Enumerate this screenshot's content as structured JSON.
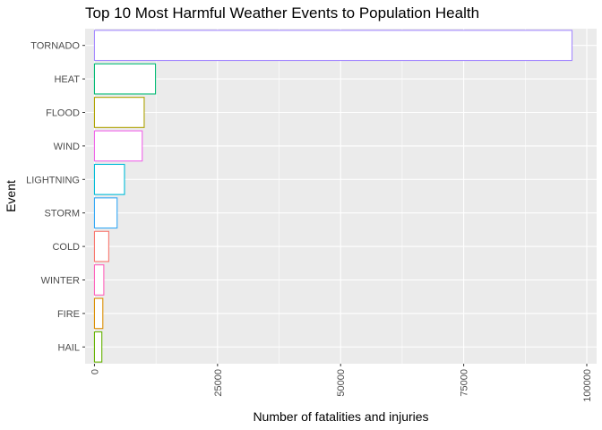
{
  "chart_data": {
    "type": "bar",
    "orientation": "horizontal",
    "title": "Top 10 Most Harmful Weather Events to Population Health",
    "xlabel": "Number of fatalities and injuries",
    "ylabel": "Event",
    "xlim": [
      -1900,
      102000
    ],
    "xticks": [
      0,
      25000,
      50000,
      75000,
      100000
    ],
    "xtick_labels": [
      "0",
      "25000",
      "50000",
      "75000",
      "100000"
    ],
    "grid": true,
    "legend": "none",
    "categories": [
      "TORNADO",
      "HEAT",
      "FLOOD",
      "WIND",
      "LIGHTNING",
      "STORM",
      "COLD",
      "WINTER",
      "FIRE",
      "HAIL"
    ],
    "values": [
      97000,
      12400,
      10100,
      9700,
      6100,
      4600,
      2900,
      1900,
      1700,
      1500
    ],
    "colors": [
      "#A58AFF",
      "#00BA73",
      "#AEA200",
      "#F065E9",
      "#00BCD8",
      "#33A7F5",
      "#F8766D",
      "#FF62BC",
      "#DB8E00",
      "#64B200"
    ],
    "fill": "#ffffff",
    "background": "#EBEBEB"
  }
}
